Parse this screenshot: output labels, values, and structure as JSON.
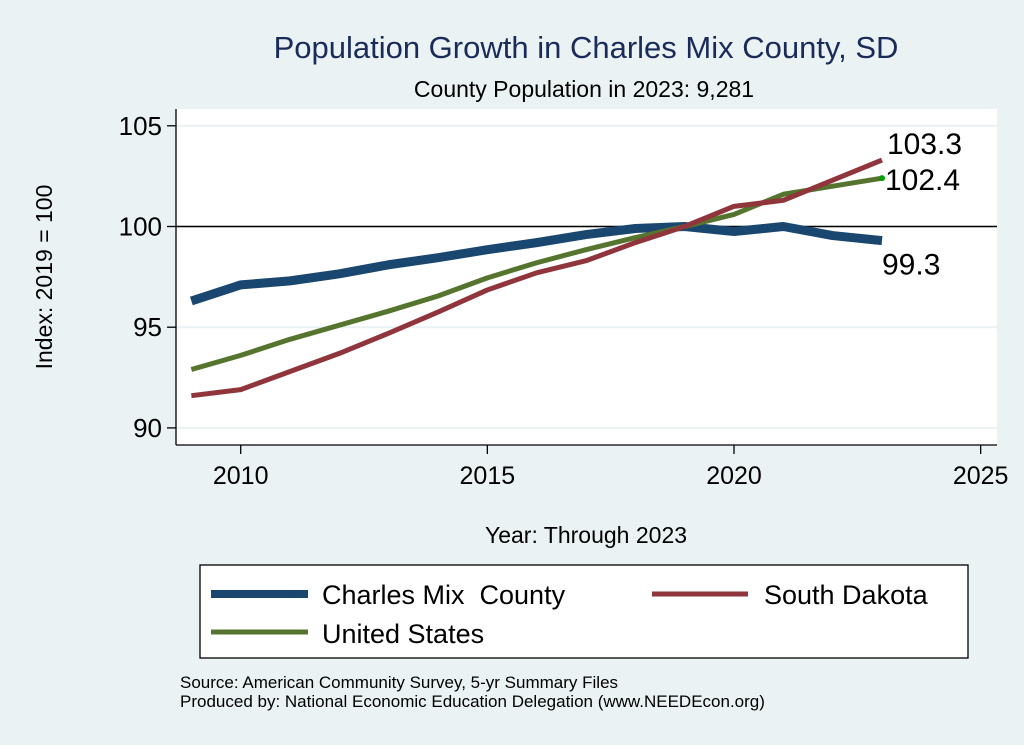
{
  "chart_data": {
    "type": "line",
    "title": "Population Growth in Charles Mix County, SD",
    "subtitle": "County Population in 2023: 9,281",
    "xlabel": "Year: Through 2023",
    "ylabel": "Index: 2019 = 100",
    "xlim": [
      2008.9,
      2025.4
    ],
    "ylim": [
      89.2,
      105.8
    ],
    "xticks": [
      2010,
      2015,
      2020,
      2025
    ],
    "yticks": [
      90,
      95,
      100,
      105
    ],
    "xtick_labels": [
      "2010",
      "2015",
      "2020",
      "2025"
    ],
    "ytick_labels": [
      "90",
      "95",
      "100",
      "105"
    ],
    "grid": "horizontal",
    "reference_line": 100,
    "x": [
      2009,
      2010,
      2011,
      2012,
      2013,
      2014,
      2015,
      2016,
      2017,
      2018,
      2019,
      2020,
      2021,
      2022,
      2023
    ],
    "series": [
      {
        "name": "Charles Mix  County",
        "color": "#1A476F",
        "values": [
          96.3,
          97.1,
          97.3,
          97.65,
          98.1,
          98.45,
          98.85,
          99.2,
          99.6,
          99.9,
          100.0,
          99.75,
          100.0,
          99.55,
          99.3
        ],
        "end_label": "99.3"
      },
      {
        "name": "South Dakota",
        "color": "#90353B",
        "values": [
          91.6,
          91.9,
          92.8,
          93.7,
          94.7,
          95.75,
          96.85,
          97.7,
          98.3,
          99.2,
          100.0,
          101.0,
          101.3,
          102.3,
          103.3
        ],
        "end_label": "103.3"
      },
      {
        "name": "United States",
        "color": "#55752F",
        "values": [
          92.9,
          93.6,
          94.4,
          95.1,
          95.8,
          96.55,
          97.45,
          98.2,
          98.85,
          99.45,
          100.0,
          100.6,
          101.6,
          102.0,
          102.4
        ],
        "end_label": "102.4"
      }
    ],
    "legend": {
      "position": "bottom",
      "entries": [
        "Charles Mix  County",
        "South Dakota",
        "United States"
      ]
    },
    "notes": [
      "Source: American Community Survey, 5-yr Summary Files",
      "Produced by: National Economic Education Delegation (www.NEEDEcon.org)"
    ]
  },
  "colors": {
    "background": "#EAF2F3",
    "plot_background": "#FFFFFF",
    "title": "#1A2B5A",
    "grid": "#EAF2F3"
  }
}
